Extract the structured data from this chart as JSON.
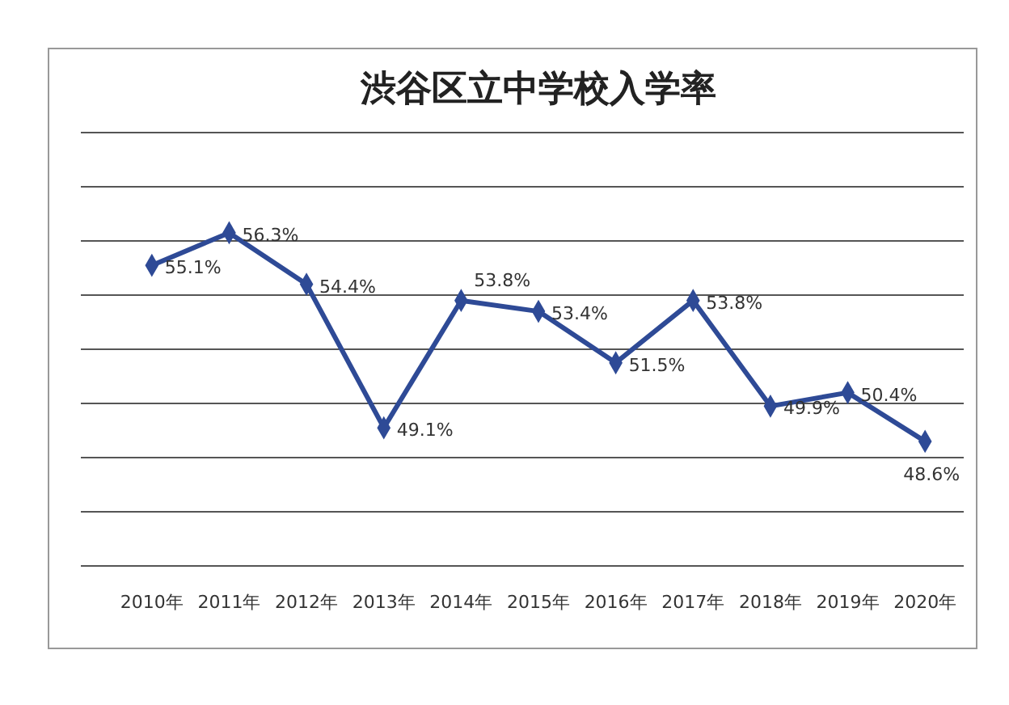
{
  "chart_data": {
    "type": "line",
    "title": "渋谷区立中学校入学率",
    "categories": [
      "2010年",
      "2011年",
      "2012年",
      "2013年",
      "2014年",
      "2015年",
      "2016年",
      "2017年",
      "2018年",
      "2019年",
      "2020年"
    ],
    "series": [
      {
        "color": "#2e4a96",
        "values": [
          55.1,
          56.3,
          54.4,
          49.1,
          53.8,
          53.4,
          51.5,
          53.8,
          49.9,
          50.4,
          48.6
        ],
        "value_labels": [
          "55.1%",
          "56.3%",
          "54.4%",
          "49.1%",
          "53.8%",
          "53.4%",
          "51.5%",
          "53.8%",
          "49.9%",
          "50.4%",
          "48.6%"
        ]
      }
    ],
    "ylim": [
      44,
      60
    ],
    "yticks": [
      {
        "value": 44,
        "label": null
      },
      {
        "value": 46,
        "label": null
      },
      {
        "value": 48,
        "label": null
      },
      {
        "value": 50,
        "label": null
      },
      {
        "value": 52,
        "label": null
      },
      {
        "value": 54,
        "label": null
      },
      {
        "value": 56,
        "label": null
      },
      {
        "value": 58,
        "label": null
      },
      {
        "value": 60,
        "label": null
      }
    ],
    "tick_labels": "x",
    "grid": "y",
    "marker": "diamond",
    "line_style": "solid"
  }
}
